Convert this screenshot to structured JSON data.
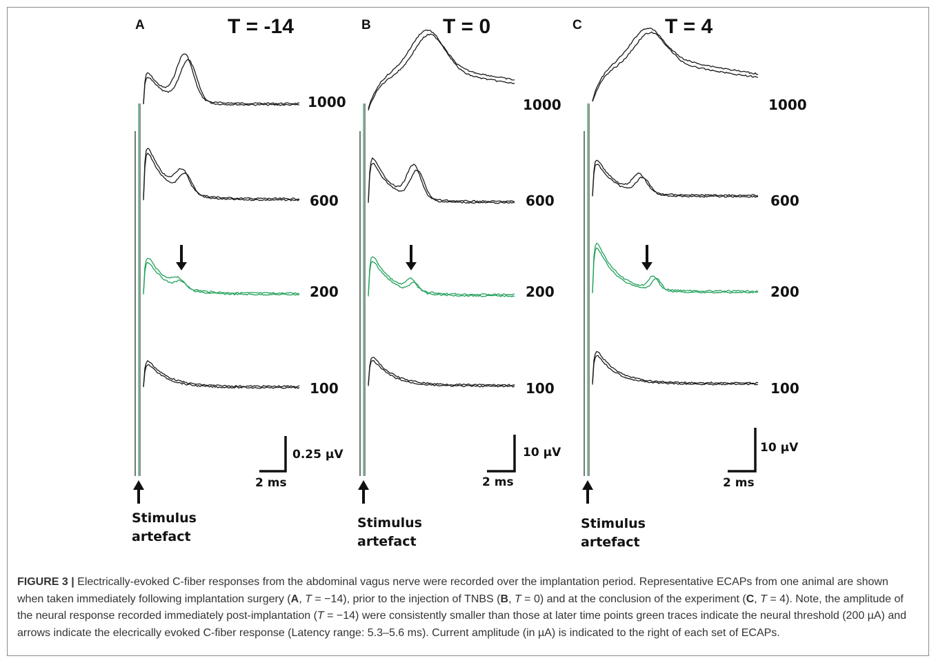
{
  "figure": {
    "panels": [
      {
        "letter": "A",
        "title": "T = -14",
        "labels": [
          "1000",
          "600",
          "200",
          "100"
        ],
        "scale_voltage": "0.25 µV",
        "scale_time": "2 ms",
        "stimulus_line1": "Stimulus",
        "stimulus_line2": "artefact"
      },
      {
        "letter": "B",
        "title": "T = 0",
        "labels": [
          "1000",
          "600",
          "200",
          "100"
        ],
        "scale_voltage": "10 µV",
        "scale_time": "2 ms",
        "stimulus_line1": "Stimulus",
        "stimulus_line2": "artefact"
      },
      {
        "letter": "C",
        "title": "T = 4",
        "labels": [
          "1000",
          "600",
          "200",
          "100"
        ],
        "scale_voltage": "10 µV",
        "scale_time": "2 ms",
        "stimulus_line1": "Stimulus",
        "stimulus_line2": "artefact"
      }
    ],
    "colors": {
      "threshold_trace": "#22a05a",
      "trace": "#1a1a1a"
    }
  },
  "caption": {
    "label": "FIGURE 3 |",
    "t1": " Electrically-evoked C-fiber responses from the abdominal vagus nerve were recorded over the implantation period. Representative ECAPs from one animal are shown when taken immediately following implantation surgery (",
    "A": "A",
    "t2": ", ",
    "T1": "T",
    "t3": " = −14), prior to the injection of TNBS (",
    "B": "B",
    "t4": ", ",
    "T2": "T",
    "t5": " = 0) and at the conclusion of the experiment (",
    "C": "C",
    "t6": ", ",
    "T3": "T",
    "t7": " = 4). Note, the amplitude of the neural response recorded immediately post-implantation (",
    "T4": "T",
    "t8": " =  −14) were consistently smaller than those at later time points green traces indicate the neural threshold (200 µA) and arrows indicate the elecrically evoked C-fiber response (Latency range: 5.3–5.6 ms). Current amplitude (in µA) is indicated to the right of each set of ECAPs."
  }
}
